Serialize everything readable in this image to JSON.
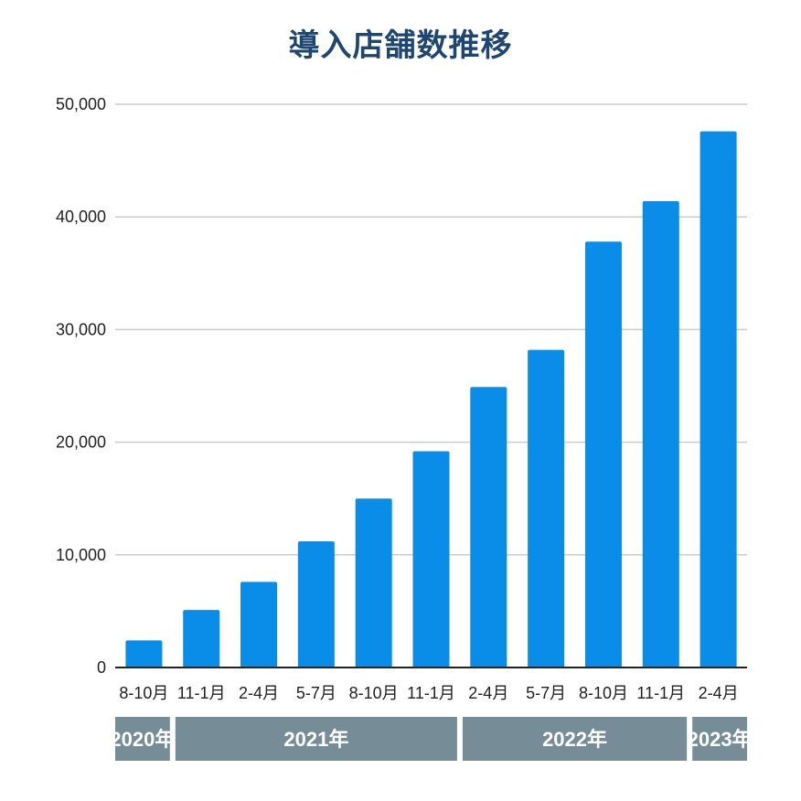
{
  "chart_data": {
    "type": "bar",
    "title": "導入店舗数推移",
    "xlabel": "",
    "ylabel": "",
    "categories": [
      "8-10月",
      "11-1月",
      "2-4月",
      "5-7月",
      "8-10月",
      "11-1月",
      "2-4月",
      "5-7月",
      "8-10月",
      "11-1月",
      "2-4月"
    ],
    "values": [
      2400,
      5100,
      7600,
      11200,
      15000,
      19200,
      24900,
      28200,
      37800,
      41400,
      47600
    ],
    "ylim": [
      0,
      50000
    ],
    "yticks": [
      {
        "value": 0,
        "label": "0"
      },
      {
        "value": 10000,
        "label": "10,000"
      },
      {
        "value": 20000,
        "label": "20,000"
      },
      {
        "value": 30000,
        "label": "30,000"
      },
      {
        "value": 40000,
        "label": "40,000"
      },
      {
        "value": 50000,
        "label": "50,000"
      }
    ],
    "year_groups": [
      {
        "label": "2020年",
        "start": 0,
        "end": 0
      },
      {
        "label": "2021年",
        "start": 1,
        "end": 5
      },
      {
        "label": "2022年",
        "start": 6,
        "end": 9
      },
      {
        "label": "2023年",
        "start": 10,
        "end": 10
      }
    ],
    "grid": true,
    "legend": "none",
    "colors": {
      "bar": "#0a8ce9",
      "grid": "#cccccc",
      "axis": "#222222",
      "year_band": "#768d98",
      "title": "#1d4770"
    }
  }
}
